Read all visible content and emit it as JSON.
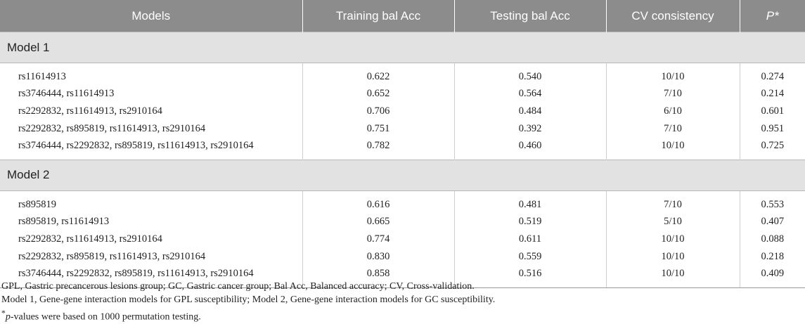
{
  "columns": [
    "Models",
    "Training bal Acc",
    "Testing bal Acc",
    "CV consistency",
    "P*"
  ],
  "groups": [
    {
      "label": "Model 1",
      "rows": [
        [
          "rs11614913",
          "0.622",
          "0.540",
          "10/10",
          "0.274"
        ],
        [
          "rs3746444, rs11614913",
          "0.652",
          "0.564",
          "7/10",
          "0.214"
        ],
        [
          "rs2292832, rs11614913, rs2910164",
          "0.706",
          "0.484",
          "6/10",
          "0.601"
        ],
        [
          "rs2292832, rs895819, rs11614913, rs2910164",
          "0.751",
          "0.392",
          "7/10",
          "0.951"
        ],
        [
          "rs3746444, rs2292832, rs895819, rs11614913, rs2910164",
          "0.782",
          "0.460",
          "10/10",
          "0.725"
        ]
      ]
    },
    {
      "label": "Model 2",
      "rows": [
        [
          "rs895819",
          "0.616",
          "0.481",
          "7/10",
          "0.553"
        ],
        [
          "rs895819, rs11614913",
          "0.665",
          "0.519",
          "5/10",
          "0.407"
        ],
        [
          "rs2292832, rs11614913, rs2910164",
          "0.774",
          "0.611",
          "10/10",
          "0.088"
        ],
        [
          "rs2292832, rs895819, rs11614913, rs2910164",
          "0.830",
          "0.559",
          "10/10",
          "0.218"
        ],
        [
          "rs3746444, rs2292832, rs895819, rs11614913, rs2910164",
          "0.858",
          "0.516",
          "10/10",
          "0.409"
        ]
      ]
    }
  ],
  "footnotes": {
    "abbreviations": "GPL, Gastric precancerous lesions group; GC, Gastric cancer group; Bal Acc, Balanced accuracy; CV, Cross-validation.",
    "models": "Model 1, Gene-gene interaction models for GPL susceptibility; Model 2, Gene-gene interaction models for GC susceptibility.",
    "p_symbol": "*",
    "p_label": "p",
    "p_note": "-values were based on 1000 permutation testing."
  },
  "colors": {
    "header_bg": "#8c8c8c",
    "group_bg": "#e2e2e2",
    "text": "#222222"
  }
}
